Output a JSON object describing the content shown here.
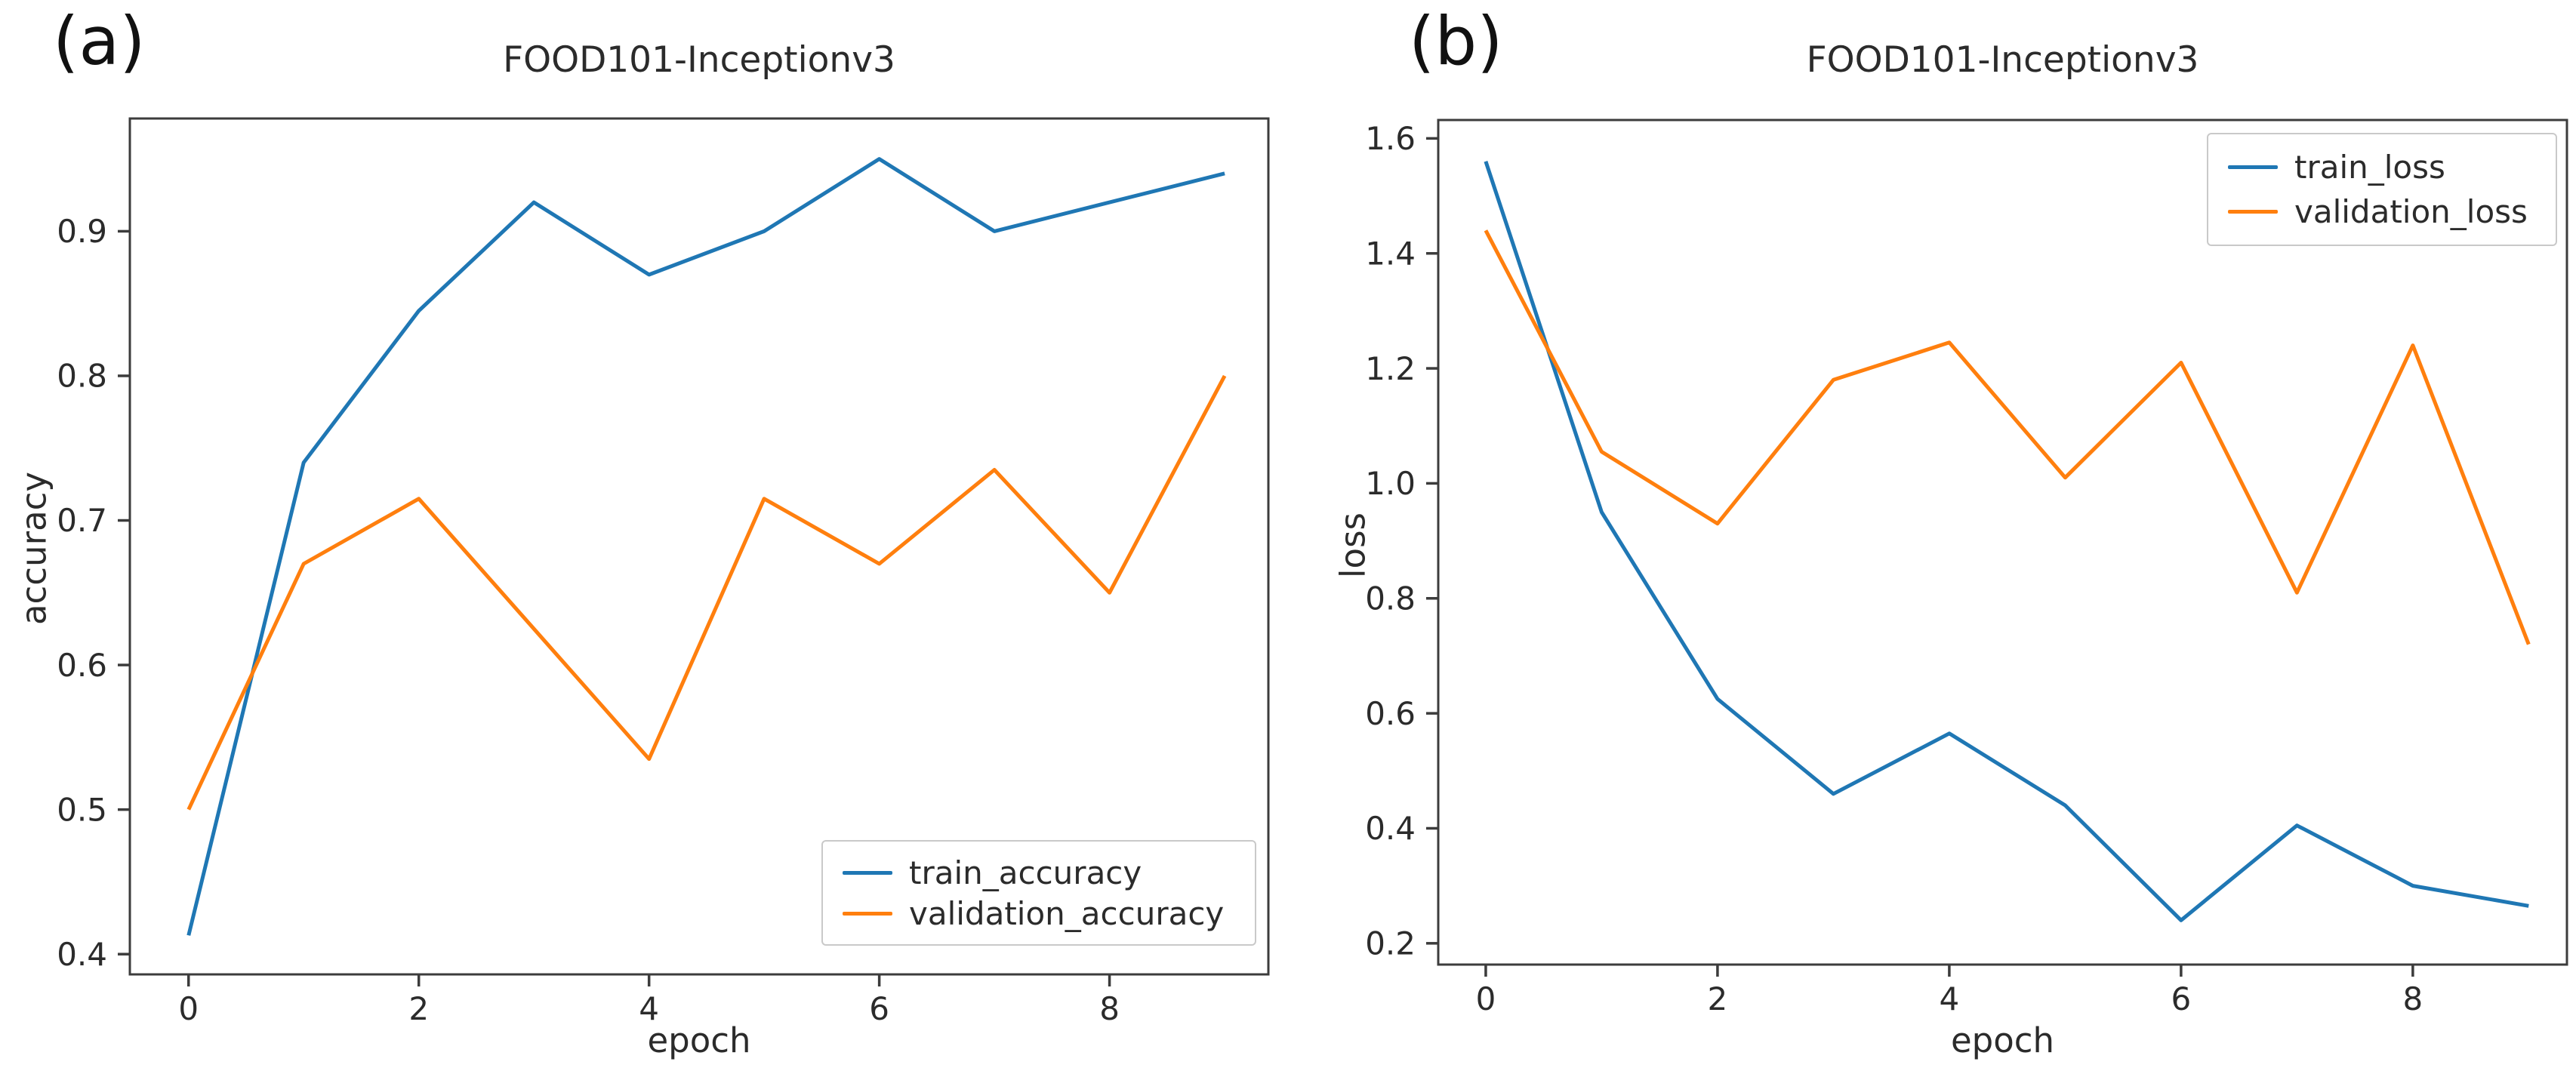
{
  "colors": {
    "train": "#1f77b4",
    "validation": "#ff7f0e",
    "text": "#2b2b2b",
    "spine": "#3c3c3c",
    "legend_border": "#c9c9c9",
    "background": "#ffffff"
  },
  "chart_data": [
    {
      "id": "accuracy",
      "type": "line",
      "panel_label": "(a)",
      "title": "FOOD101-Inceptionv3",
      "xlabel": "epoch",
      "ylabel": "accuracy",
      "x": [
        0,
        1,
        2,
        3,
        4,
        5,
        6,
        7,
        8,
        9
      ],
      "series": [
        {
          "name": "train_accuracy",
          "color": "#1f77b4",
          "values": [
            0.413,
            0.74,
            0.845,
            0.92,
            0.87,
            0.9,
            0.95,
            0.9,
            0.92,
            0.94
          ]
        },
        {
          "name": "validation_accuracy",
          "color": "#ff7f0e",
          "values": [
            0.5,
            0.67,
            0.715,
            0.625,
            0.535,
            0.715,
            0.67,
            0.735,
            0.65,
            0.8
          ]
        }
      ],
      "xlim": [
        -0.51,
        9.38
      ],
      "ylim": [
        0.386,
        0.978
      ],
      "xticks": [
        0,
        2,
        4,
        6,
        8
      ],
      "xtick_labels": [
        "0",
        "2",
        "4",
        "6",
        "8"
      ],
      "yticks": [
        0.4,
        0.5,
        0.6,
        0.7,
        0.8,
        0.9
      ],
      "ytick_labels": [
        "0.4",
        "0.5",
        "0.6",
        "0.7",
        "0.8",
        "0.9"
      ],
      "grid": false,
      "legend_position": "lower right"
    },
    {
      "id": "loss",
      "type": "line",
      "panel_label": "(b)",
      "title": "FOOD101-Inceptionv3",
      "xlabel": "epoch",
      "ylabel": "loss",
      "x": [
        0,
        1,
        2,
        3,
        4,
        5,
        6,
        7,
        8,
        9
      ],
      "series": [
        {
          "name": "train_loss",
          "color": "#1f77b4",
          "values": [
            1.56,
            0.95,
            0.625,
            0.46,
            0.565,
            0.44,
            0.24,
            0.405,
            0.3,
            0.265
          ]
        },
        {
          "name": "validation_loss",
          "color": "#ff7f0e",
          "values": [
            1.44,
            1.055,
            0.93,
            1.18,
            1.245,
            1.01,
            1.21,
            0.81,
            1.24,
            0.72
          ]
        }
      ],
      "xlim": [
        -0.41,
        9.33
      ],
      "ylim": [
        0.163,
        1.632
      ],
      "xticks": [
        0,
        2,
        4,
        6,
        8
      ],
      "xtick_labels": [
        "0",
        "2",
        "4",
        "6",
        "8"
      ],
      "yticks": [
        0.2,
        0.4,
        0.6,
        0.8,
        1.0,
        1.2,
        1.4,
        1.6
      ],
      "ytick_labels": [
        "0.2",
        "0.4",
        "0.6",
        "0.8",
        "1.0",
        "1.2",
        "1.4",
        "1.6"
      ],
      "grid": false,
      "legend_position": "upper right"
    }
  ]
}
